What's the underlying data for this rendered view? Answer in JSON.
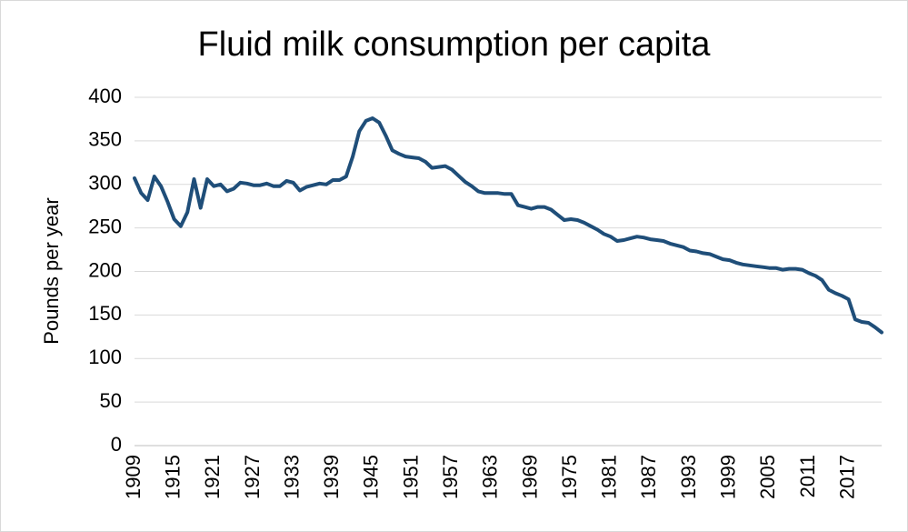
{
  "chart_data": {
    "type": "line",
    "title": "Fluid milk consumption per capita",
    "xlabel": "",
    "ylabel": "Pounds per year",
    "xlim": [
      1909,
      2022
    ],
    "ylim": [
      0,
      400
    ],
    "yticks": [
      0,
      50,
      100,
      150,
      200,
      250,
      300,
      350,
      400
    ],
    "xticks": [
      1909,
      1915,
      1921,
      1927,
      1933,
      1939,
      1945,
      1951,
      1957,
      1963,
      1969,
      1975,
      1981,
      1987,
      1993,
      1999,
      2005,
      2011,
      2017
    ],
    "grid": true,
    "line_color": "#1f4e79",
    "series": [
      {
        "x": [
          1909,
          1910,
          1911,
          1912,
          1913,
          1914,
          1915,
          1916,
          1917,
          1918,
          1919,
          1920,
          1921,
          1922,
          1923,
          1924,
          1925,
          1926,
          1927,
          1928,
          1929,
          1930,
          1931,
          1932,
          1933,
          1934,
          1935,
          1936,
          1937,
          1938,
          1939,
          1940,
          1941,
          1942,
          1943,
          1944,
          1945,
          1946,
          1947,
          1948,
          1949,
          1950,
          1951,
          1952,
          1953,
          1954,
          1955,
          1956,
          1957,
          1958,
          1959,
          1960,
          1961,
          1962,
          1963,
          1964,
          1965,
          1966,
          1967,
          1968,
          1969,
          1970,
          1971,
          1972,
          1973,
          1974,
          1975,
          1976,
          1977,
          1978,
          1979,
          1980,
          1981,
          1982,
          1983,
          1984,
          1985,
          1986,
          1987,
          1988,
          1989,
          1990,
          1991,
          1992,
          1993,
          1994,
          1995,
          1996,
          1997,
          1998,
          1999,
          2000,
          2001,
          2002,
          2003,
          2004,
          2005,
          2006,
          2007,
          2008,
          2009,
          2010,
          2011,
          2012,
          2013,
          2014,
          2015,
          2016,
          2017,
          2018,
          2019,
          2020,
          2021,
          2022
        ],
        "values": [
          307,
          290,
          282,
          309,
          298,
          280,
          260,
          252,
          268,
          306,
          273,
          306,
          298,
          300,
          292,
          295,
          302,
          301,
          299,
          299,
          301,
          298,
          298,
          304,
          302,
          293,
          297,
          299,
          301,
          300,
          305,
          305,
          309,
          332,
          361,
          373,
          376,
          371,
          356,
          339,
          335,
          332,
          331,
          330,
          326,
          319,
          320,
          321,
          317,
          310,
          303,
          298,
          292,
          290,
          290,
          290,
          289,
          289,
          276,
          274,
          272,
          274,
          274,
          271,
          265,
          259,
          260,
          259,
          256,
          252,
          248,
          243,
          240,
          235,
          236,
          238,
          240,
          239,
          237,
          236,
          235,
          232,
          230,
          228,
          224,
          223,
          221,
          220,
          217,
          214,
          213,
          210,
          208,
          207,
          206,
          205,
          204,
          204,
          202,
          203,
          203,
          202,
          198,
          195,
          190,
          179,
          175,
          172,
          168,
          145,
          142,
          141,
          136,
          130
        ]
      }
    ]
  }
}
